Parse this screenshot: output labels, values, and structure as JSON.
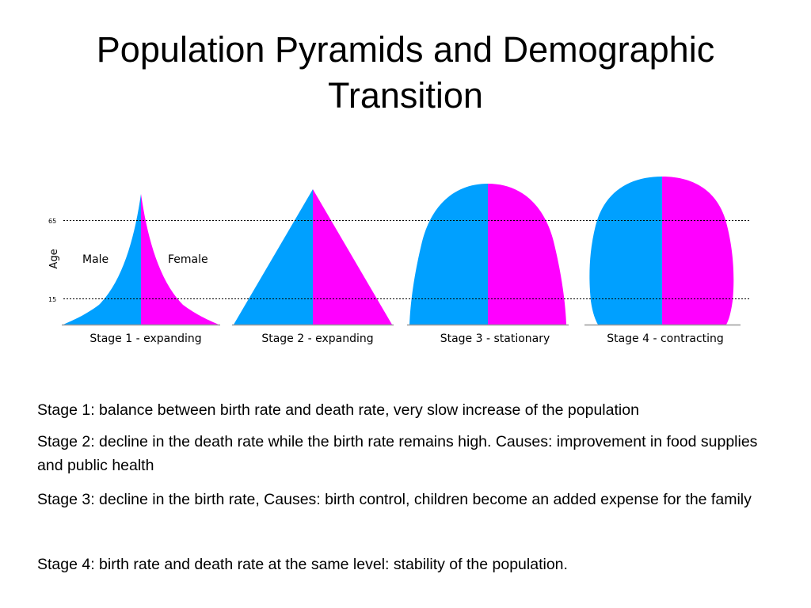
{
  "slide": {
    "title_line1": "Population Pyramids and Demographic",
    "title_line2": "Transition"
  },
  "figure": {
    "axis": {
      "label": "Age",
      "ticks": [
        "65",
        "15"
      ]
    },
    "labels": {
      "male": "Male",
      "female": "Female"
    },
    "stages": [
      {
        "caption": "Stage 1 - expanding",
        "shape": "expanding-concave"
      },
      {
        "caption": "Stage 2 - expanding",
        "shape": "triangle"
      },
      {
        "caption": "Stage 3 - stationary",
        "shape": "bell"
      },
      {
        "caption": "Stage 4 - contracting",
        "shape": "urn"
      }
    ],
    "colors": {
      "male": "#00A0FF",
      "female": "#FF00FF",
      "baseline": "#999999",
      "reference_line": "#000000"
    }
  },
  "notes": [
    "Stage 1: balance between birth rate and death rate, very slow increase of the population",
    "Stage 2: decline in the death rate while the birth rate remains high.  Causes: improvement in food supplies and public health",
    "Stage 3: decline in the birth rate, Causes:  birth control, children become an added expense for the family",
    "Stage 4: birth rate and death rate at the same level:  stability of the population."
  ]
}
